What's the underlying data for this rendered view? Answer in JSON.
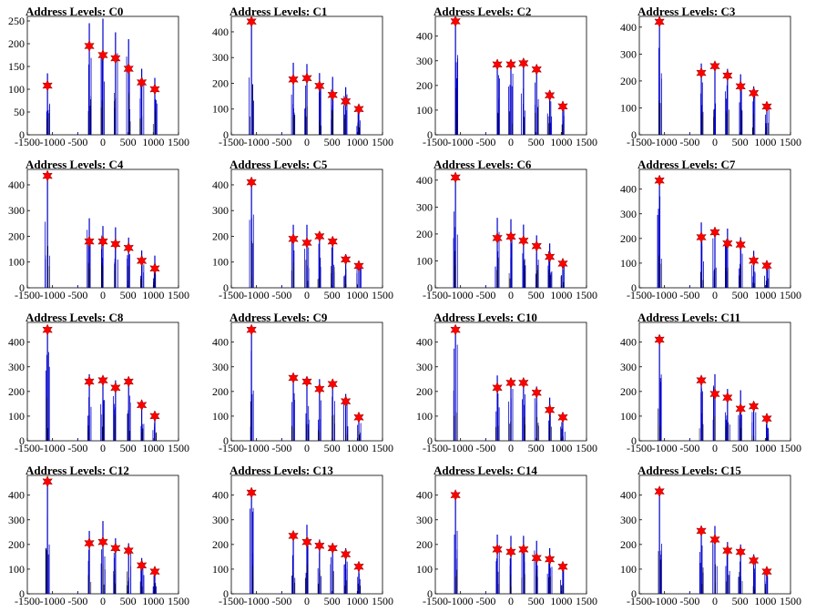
{
  "chart_data": [
    {
      "type": "bar",
      "title": "Address Levels: C0",
      "ylim": [
        0,
        260
      ],
      "yticks": [
        0,
        50,
        100,
        150,
        200,
        250
      ],
      "xlim": [
        -1500,
        1500
      ],
      "xticks": [
        -1500,
        -1000,
        -500,
        0,
        500,
        1000,
        1500
      ],
      "levels": [
        {
          "x": -1100,
          "peak": 135,
          "star": 108
        },
        {
          "x": -270,
          "peak": 245,
          "star": 195
        },
        {
          "x": 0,
          "peak": 255,
          "star": 175
        },
        {
          "x": 250,
          "peak": 225,
          "star": 168
        },
        {
          "x": 510,
          "peak": 210,
          "star": 145
        },
        {
          "x": 770,
          "peak": 145,
          "star": 115
        },
        {
          "x": 1030,
          "peak": 125,
          "star": 100
        }
      ],
      "star_color": "#ff0000",
      "bar_color": "#0000cc"
    },
    {
      "type": "bar",
      "title": "Address Levels: C1",
      "ylim": [
        0,
        460
      ],
      "yticks": [
        0,
        100,
        200,
        300,
        400
      ],
      "xlim": [
        -1500,
        1500
      ],
      "xticks": [
        -1500,
        -1000,
        -500,
        0,
        500,
        1000,
        1500
      ],
      "levels": [
        {
          "x": -1100,
          "peak": 440,
          "star": 440
        },
        {
          "x": -270,
          "peak": 280,
          "star": 215
        },
        {
          "x": 0,
          "peak": 275,
          "star": 220
        },
        {
          "x": 250,
          "peak": 240,
          "star": 190
        },
        {
          "x": 510,
          "peak": 225,
          "star": 155
        },
        {
          "x": 770,
          "peak": 185,
          "star": 130
        },
        {
          "x": 1030,
          "peak": 115,
          "star": 100
        }
      ],
      "star_color": "#ff0000",
      "bar_color": "#0000cc"
    },
    {
      "type": "bar",
      "title": "Address Levels: C2",
      "ylim": [
        0,
        480
      ],
      "yticks": [
        0,
        100,
        200,
        300,
        400
      ],
      "xlim": [
        -1500,
        1500
      ],
      "xticks": [
        -1500,
        -1000,
        -500,
        0,
        500,
        1000,
        1500
      ],
      "levels": [
        {
          "x": -1100,
          "peak": 465,
          "star": 460
        },
        {
          "x": -270,
          "peak": 300,
          "star": 285
        },
        {
          "x": 0,
          "peak": 300,
          "star": 285
        },
        {
          "x": 250,
          "peak": 300,
          "star": 290
        },
        {
          "x": 510,
          "peak": 280,
          "star": 265
        },
        {
          "x": 770,
          "peak": 180,
          "star": 160
        },
        {
          "x": 1030,
          "peak": 135,
          "star": 115
        }
      ],
      "star_color": "#ff0000",
      "bar_color": "#0000cc"
    },
    {
      "type": "bar",
      "title": "Address Levels: C3",
      "ylim": [
        0,
        440
      ],
      "yticks": [
        0,
        100,
        200,
        300,
        400
      ],
      "xlim": [
        -1500,
        1500
      ],
      "xticks": [
        -1500,
        -1000,
        -500,
        0,
        500,
        1000,
        1500
      ],
      "levels": [
        {
          "x": -1100,
          "peak": 425,
          "star": 420
        },
        {
          "x": -270,
          "peak": 265,
          "star": 230
        },
        {
          "x": 0,
          "peak": 260,
          "star": 255
        },
        {
          "x": 250,
          "peak": 245,
          "star": 220
        },
        {
          "x": 510,
          "peak": 225,
          "star": 180
        },
        {
          "x": 770,
          "peak": 180,
          "star": 155
        },
        {
          "x": 1030,
          "peak": 120,
          "star": 105
        }
      ],
      "star_color": "#ff0000",
      "bar_color": "#0000cc"
    },
    {
      "type": "bar",
      "title": "Address Levels: C4",
      "ylim": [
        0,
        460
      ],
      "yticks": [
        0,
        100,
        200,
        300,
        400
      ],
      "xlim": [
        -1500,
        1500
      ],
      "xticks": [
        -1500,
        -1000,
        -500,
        0,
        500,
        1000,
        1500
      ],
      "levels": [
        {
          "x": -1100,
          "peak": 440,
          "star": 435
        },
        {
          "x": -270,
          "peak": 270,
          "star": 180
        },
        {
          "x": 0,
          "peak": 240,
          "star": 180
        },
        {
          "x": 250,
          "peak": 235,
          "star": 170
        },
        {
          "x": 510,
          "peak": 195,
          "star": 155
        },
        {
          "x": 770,
          "peak": 145,
          "star": 105
        },
        {
          "x": 1030,
          "peak": 125,
          "star": 75
        }
      ],
      "star_color": "#ff0000",
      "bar_color": "#0000cc"
    },
    {
      "type": "bar",
      "title": "Address Levels: C5",
      "ylim": [
        0,
        460
      ],
      "yticks": [
        0,
        100,
        200,
        300,
        400
      ],
      "xlim": [
        -1500,
        1500
      ],
      "xticks": [
        -1500,
        -1000,
        -500,
        0,
        500,
        1000,
        1500
      ],
      "levels": [
        {
          "x": -1100,
          "peak": 420,
          "star": 410
        },
        {
          "x": -270,
          "peak": 245,
          "star": 190
        },
        {
          "x": 0,
          "peak": 245,
          "star": 175
        },
        {
          "x": 250,
          "peak": 210,
          "star": 200
        },
        {
          "x": 510,
          "peak": 195,
          "star": 180
        },
        {
          "x": 770,
          "peak": 130,
          "star": 110
        },
        {
          "x": 1030,
          "peak": 105,
          "star": 85
        }
      ],
      "star_color": "#ff0000",
      "bar_color": "#0000cc"
    },
    {
      "type": "bar",
      "title": "Address Levels: C6",
      "ylim": [
        0,
        440
      ],
      "yticks": [
        0,
        100,
        200,
        300,
        400
      ],
      "xlim": [
        -1500,
        1500
      ],
      "xticks": [
        -1500,
        -1000,
        -500,
        0,
        500,
        1000,
        1500
      ],
      "levels": [
        {
          "x": -1100,
          "peak": 420,
          "star": 410
        },
        {
          "x": -270,
          "peak": 260,
          "star": 185
        },
        {
          "x": 0,
          "peak": 255,
          "star": 190
        },
        {
          "x": 250,
          "peak": 235,
          "star": 175
        },
        {
          "x": 510,
          "peak": 195,
          "star": 155
        },
        {
          "x": 770,
          "peak": 165,
          "star": 115
        },
        {
          "x": 1030,
          "peak": 105,
          "star": 90
        }
      ],
      "star_color": "#ff0000",
      "bar_color": "#0000cc"
    },
    {
      "type": "bar",
      "title": "Address Levels: C7",
      "ylim": [
        0,
        480
      ],
      "yticks": [
        0,
        100,
        200,
        300,
        400
      ],
      "xlim": [
        -1500,
        1500
      ],
      "xticks": [
        -1500,
        -1000,
        -500,
        0,
        500,
        1000,
        1500
      ],
      "levels": [
        {
          "x": -1100,
          "peak": 445,
          "star": 435
        },
        {
          "x": -270,
          "peak": 265,
          "star": 205
        },
        {
          "x": 0,
          "peak": 240,
          "star": 225
        },
        {
          "x": 250,
          "peak": 240,
          "star": 180
        },
        {
          "x": 510,
          "peak": 205,
          "star": 175
        },
        {
          "x": 770,
          "peak": 150,
          "star": 110
        },
        {
          "x": 1030,
          "peak": 110,
          "star": 90
        }
      ],
      "star_color": "#ff0000",
      "bar_color": "#0000cc"
    },
    {
      "type": "bar",
      "title": "Address Levels: C8",
      "ylim": [
        0,
        480
      ],
      "yticks": [
        0,
        100,
        200,
        300,
        400
      ],
      "xlim": [
        -1500,
        1500
      ],
      "xticks": [
        -1500,
        -1000,
        -500,
        0,
        500,
        1000,
        1500
      ],
      "levels": [
        {
          "x": -1100,
          "peak": 455,
          "star": 450
        },
        {
          "x": -270,
          "peak": 270,
          "star": 240
        },
        {
          "x": 0,
          "peak": 260,
          "star": 245
        },
        {
          "x": 250,
          "peak": 245,
          "star": 215
        },
        {
          "x": 510,
          "peak": 255,
          "star": 240
        },
        {
          "x": 770,
          "peak": 160,
          "star": 145
        },
        {
          "x": 1030,
          "peak": 110,
          "star": 100
        }
      ],
      "star_color": "#ff0000",
      "bar_color": "#0000cc"
    },
    {
      "type": "bar",
      "title": "Address Levels: C9",
      "ylim": [
        0,
        480
      ],
      "yticks": [
        0,
        100,
        200,
        300,
        400
      ],
      "xlim": [
        -1500,
        1500
      ],
      "xticks": [
        -1500,
        -1000,
        -500,
        0,
        500,
        1000,
        1500
      ],
      "levels": [
        {
          "x": -1100,
          "peak": 450,
          "star": 450
        },
        {
          "x": -270,
          "peak": 270,
          "star": 255
        },
        {
          "x": 0,
          "peak": 260,
          "star": 240
        },
        {
          "x": 250,
          "peak": 250,
          "star": 210
        },
        {
          "x": 510,
          "peak": 240,
          "star": 230
        },
        {
          "x": 770,
          "peak": 190,
          "star": 160
        },
        {
          "x": 1030,
          "peak": 110,
          "star": 95
        }
      ],
      "star_color": "#ff0000",
      "bar_color": "#0000cc"
    },
    {
      "type": "bar",
      "title": "Address Levels: C10",
      "ylim": [
        0,
        480
      ],
      "yticks": [
        0,
        100,
        200,
        300,
        400
      ],
      "xlim": [
        -1500,
        1500
      ],
      "xticks": [
        -1500,
        -1000,
        -500,
        0,
        500,
        1000,
        1500
      ],
      "levels": [
        {
          "x": -1100,
          "peak": 460,
          "star": 450
        },
        {
          "x": -270,
          "peak": 265,
          "star": 215
        },
        {
          "x": 0,
          "peak": 255,
          "star": 235
        },
        {
          "x": 250,
          "peak": 250,
          "star": 235
        },
        {
          "x": 510,
          "peak": 220,
          "star": 195
        },
        {
          "x": 770,
          "peak": 175,
          "star": 125
        },
        {
          "x": 1030,
          "peak": 110,
          "star": 95
        }
      ],
      "star_color": "#ff0000",
      "bar_color": "#0000cc"
    },
    {
      "type": "bar",
      "title": "Address Levels: C11",
      "ylim": [
        0,
        480
      ],
      "yticks": [
        0,
        100,
        200,
        300,
        400
      ],
      "xlim": [
        -1500,
        1500
      ],
      "xticks": [
        -1500,
        -1000,
        -500,
        0,
        500,
        1000,
        1500
      ],
      "levels": [
        {
          "x": -1100,
          "peak": 420,
          "star": 410
        },
        {
          "x": -270,
          "peak": 255,
          "star": 245
        },
        {
          "x": 0,
          "peak": 270,
          "star": 190
        },
        {
          "x": 250,
          "peak": 210,
          "star": 175
        },
        {
          "x": 510,
          "peak": 205,
          "star": 130
        },
        {
          "x": 770,
          "peak": 150,
          "star": 140
        },
        {
          "x": 1030,
          "peak": 110,
          "star": 90
        }
      ],
      "star_color": "#ff0000",
      "bar_color": "#0000cc"
    },
    {
      "type": "bar",
      "title": "Address Levels: C12",
      "ylim": [
        0,
        480
      ],
      "yticks": [
        0,
        100,
        200,
        300,
        400
      ],
      "xlim": [
        -1500,
        1500
      ],
      "xticks": [
        -1500,
        -1000,
        -500,
        0,
        500,
        1000,
        1500
      ],
      "levels": [
        {
          "x": -1100,
          "peak": 460,
          "star": 455
        },
        {
          "x": -270,
          "peak": 255,
          "star": 205
        },
        {
          "x": 0,
          "peak": 295,
          "star": 210
        },
        {
          "x": 250,
          "peak": 225,
          "star": 185
        },
        {
          "x": 510,
          "peak": 205,
          "star": 175
        },
        {
          "x": 770,
          "peak": 145,
          "star": 115
        },
        {
          "x": 1030,
          "peak": 110,
          "star": 90
        }
      ],
      "star_color": "#ff0000",
      "bar_color": "#0000cc"
    },
    {
      "type": "bar",
      "title": "Address Levels: C13",
      "ylim": [
        0,
        480
      ],
      "yticks": [
        0,
        100,
        200,
        300,
        400
      ],
      "xlim": [
        -1500,
        1500
      ],
      "xticks": [
        -1500,
        -1000,
        -500,
        0,
        500,
        1000,
        1500
      ],
      "levels": [
        {
          "x": -1100,
          "peak": 420,
          "star": 410
        },
        {
          "x": -270,
          "peak": 250,
          "star": 235
        },
        {
          "x": 0,
          "peak": 280,
          "star": 210
        },
        {
          "x": 250,
          "peak": 220,
          "star": 195
        },
        {
          "x": 510,
          "peak": 205,
          "star": 185
        },
        {
          "x": 770,
          "peak": 185,
          "star": 160
        },
        {
          "x": 1030,
          "peak": 125,
          "star": 110
        }
      ],
      "star_color": "#ff0000",
      "bar_color": "#0000cc"
    },
    {
      "type": "bar",
      "title": "Address Levels: C14",
      "ylim": [
        0,
        480
      ],
      "yticks": [
        0,
        100,
        200,
        300,
        400
      ],
      "xlim": [
        -1500,
        1500
      ],
      "xticks": [
        -1500,
        -1000,
        -500,
        0,
        500,
        1000,
        1500
      ],
      "levels": [
        {
          "x": -1100,
          "peak": 410,
          "star": 400
        },
        {
          "x": -270,
          "peak": 240,
          "star": 180
        },
        {
          "x": 0,
          "peak": 235,
          "star": 170
        },
        {
          "x": 250,
          "peak": 235,
          "star": 180
        },
        {
          "x": 510,
          "peak": 215,
          "star": 145
        },
        {
          "x": 770,
          "peak": 185,
          "star": 140
        },
        {
          "x": 1030,
          "peak": 125,
          "star": 110
        }
      ],
      "star_color": "#ff0000",
      "bar_color": "#0000cc"
    },
    {
      "type": "bar",
      "title": "Address Levels: C15",
      "ylim": [
        0,
        480
      ],
      "yticks": [
        0,
        100,
        200,
        300,
        400
      ],
      "xlim": [
        -1500,
        1500
      ],
      "xticks": [
        -1500,
        -1000,
        -500,
        0,
        500,
        1000,
        1500
      ],
      "levels": [
        {
          "x": -1100,
          "peak": 420,
          "star": 415
        },
        {
          "x": -270,
          "peak": 260,
          "star": 255
        },
        {
          "x": 0,
          "peak": 275,
          "star": 220
        },
        {
          "x": 250,
          "peak": 210,
          "star": 175
        },
        {
          "x": 510,
          "peak": 200,
          "star": 170
        },
        {
          "x": 770,
          "peak": 160,
          "star": 135
        },
        {
          "x": 1030,
          "peak": 105,
          "star": 90
        }
      ],
      "star_color": "#ff0000",
      "bar_color": "#0000cc"
    }
  ]
}
